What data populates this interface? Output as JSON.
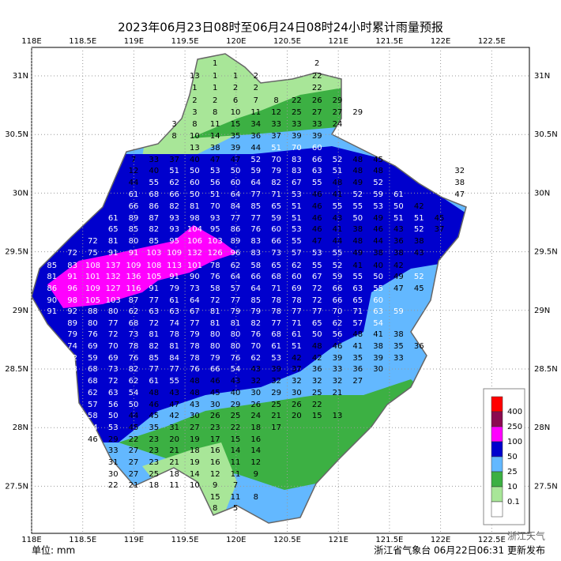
{
  "title": "2023年06月23日08时至06月24日08时24小时累计雨量预报",
  "lon_labels": [
    "118E",
    "118.5E",
    "119E",
    "119.5E",
    "120E",
    "120.5E",
    "121E",
    "121.5E",
    "122E",
    "122.5E"
  ],
  "lat_labels": [
    "31N",
    "30.5N",
    "30N",
    "29.5N",
    "29N",
    "28.5N",
    "28N",
    "27.5N"
  ],
  "rows": [
    [
      [
        1
      ],
      [
        2
      ]
    ],
    [
      [
        13,
        1,
        1,
        2
      ],
      [
        22
      ]
    ],
    [
      [
        1,
        1,
        2,
        2
      ],
      [
        22
      ]
    ],
    [
      [
        2,
        2,
        6,
        7,
        8,
        22,
        26,
        29
      ]
    ],
    [
      [
        3,
        8,
        10,
        11,
        12,
        25,
        27,
        27,
        29
      ]
    ],
    [
      [
        3,
        8,
        11,
        15,
        34,
        33,
        33,
        33,
        24
      ]
    ],
    [
      [
        8,
        10,
        14,
        35,
        36,
        37,
        39,
        39
      ]
    ],
    [
      [
        13,
        38,
        39,
        44,
        51,
        70,
        60
      ]
    ],
    [
      [
        7,
        33,
        37,
        40,
        47,
        47,
        52,
        70,
        83,
        66,
        52,
        48,
        45
      ]
    ],
    [
      [
        12,
        40,
        51,
        50,
        53,
        50,
        59,
        79,
        83,
        63,
        51,
        48,
        48
      ],
      [
        32
      ]
    ],
    [
      [
        44,
        55,
        62,
        60,
        56,
        60,
        64,
        82,
        67,
        55,
        48,
        49,
        52
      ],
      [
        38
      ]
    ],
    [
      [
        61,
        68,
        66,
        50,
        51,
        64,
        77,
        71,
        53,
        46,
        41,
        52,
        59,
        61
      ],
      [
        47
      ]
    ],
    [
      [
        66,
        86,
        82,
        81,
        70,
        84,
        85,
        65,
        51,
        46,
        55,
        55,
        53,
        50,
        42
      ],
      [
        53
      ]
    ],
    [
      [
        61,
        89,
        87,
        93,
        98,
        93,
        77,
        77,
        59,
        51,
        46,
        43,
        50,
        49,
        51,
        51,
        45
      ]
    ],
    [
      [
        65,
        85,
        82,
        93,
        104,
        95,
        86,
        76,
        60,
        53,
        46,
        41,
        38,
        46,
        43,
        52,
        37
      ]
    ],
    [
      [
        72,
        81,
        80,
        85,
        95,
        106,
        103,
        89,
        83,
        66,
        55,
        47,
        44,
        48,
        44,
        36,
        38
      ]
    ],
    [
      [
        72,
        75,
        91,
        91,
        103,
        109,
        132,
        126,
        96,
        83,
        73,
        57,
        53,
        55,
        49,
        38,
        38,
        43
      ]
    ],
    [
      [
        85,
        83,
        108,
        137,
        109,
        108,
        113,
        101,
        78,
        62,
        58,
        65,
        62,
        55,
        52,
        41,
        40,
        42
      ]
    ],
    [
      [
        81,
        91,
        101,
        132,
        136,
        105,
        91,
        90,
        76,
        64,
        66,
        68,
        60,
        67,
        59,
        55,
        50,
        49,
        52
      ]
    ],
    [
      [
        86,
        96,
        109,
        127,
        116,
        91,
        79,
        73,
        58,
        57,
        64,
        71,
        69,
        72,
        66,
        63,
        55,
        47,
        45
      ]
    ],
    [
      [
        90,
        98,
        105,
        103,
        87,
        77,
        61,
        64,
        72,
        77,
        85,
        78,
        78,
        72,
        66,
        65,
        60
      ]
    ],
    [
      [
        91,
        92,
        88,
        80,
        62,
        63,
        63,
        67,
        81,
        79,
        79,
        78,
        77,
        77,
        70,
        71,
        63,
        59
      ]
    ],
    [
      [
        89,
        80,
        77,
        68,
        72,
        74,
        77,
        81,
        81,
        82,
        77,
        71,
        65,
        62,
        57,
        54
      ]
    ],
    [
      [
        79,
        76,
        72,
        73,
        81,
        78,
        79,
        80,
        80,
        76,
        68,
        61,
        50,
        56,
        48,
        41,
        38
      ]
    ],
    [
      [
        74,
        69,
        70,
        78,
        82,
        81,
        78,
        80,
        80,
        70,
        61,
        51,
        48,
        46,
        41,
        38,
        35,
        36
      ]
    ],
    [
      [
        72,
        59,
        69,
        76,
        85,
        84,
        78,
        79,
        76,
        62,
        53,
        42,
        42,
        39,
        35,
        39,
        33
      ]
    ],
    [
      [
        68,
        68,
        73,
        82,
        77,
        77,
        76,
        66,
        54,
        43,
        39,
        37,
        36,
        33,
        36,
        30
      ]
    ],
    [
      [
        68,
        72,
        62,
        61,
        55,
        48,
        46,
        43,
        32,
        32,
        32,
        32,
        32,
        27
      ]
    ],
    [
      [
        62,
        63,
        54,
        48,
        43,
        48,
        45,
        40,
        30,
        29,
        30,
        25,
        21
      ]
    ],
    [
      [
        57,
        56,
        50,
        46,
        47,
        43,
        30,
        29,
        26,
        25,
        26,
        22
      ]
    ],
    [
      [
        58,
        50,
        44,
        45,
        42,
        30,
        26,
        25,
        24,
        21,
        20,
        15,
        13
      ]
    ],
    [
      [
        54,
        53,
        45,
        35,
        31,
        27,
        23,
        22,
        18,
        17
      ]
    ],
    [
      [
        46,
        29,
        22,
        23,
        20,
        19,
        17,
        15,
        16
      ]
    ],
    [
      [
        33,
        27,
        23,
        21,
        18,
        16,
        14,
        14
      ]
    ],
    [
      [
        31,
        27,
        23,
        21,
        19,
        16,
        11,
        12
      ]
    ],
    [
      [
        30,
        27,
        25,
        18,
        14,
        12,
        11,
        9
      ]
    ],
    [
      [
        22,
        21,
        18,
        11,
        10,
        9,
        7
      ]
    ],
    [
      [
        15,
        11,
        8
      ]
    ],
    [
      [
        8,
        5
      ]
    ]
  ],
  "legend": {
    "labels": [
      400,
      250,
      100,
      50,
      25,
      10,
      0.1
    ],
    "colors": [
      "#ff0000",
      "#8b0a50",
      "#ff00ff",
      "#0000cd",
      "#63b8ff",
      "#3cb043",
      "#a8e698"
    ]
  },
  "unit": "单位: mm",
  "issuer": "浙江省气象台 06月22日06:31 更新发布",
  "watermark": "浙江天气"
}
